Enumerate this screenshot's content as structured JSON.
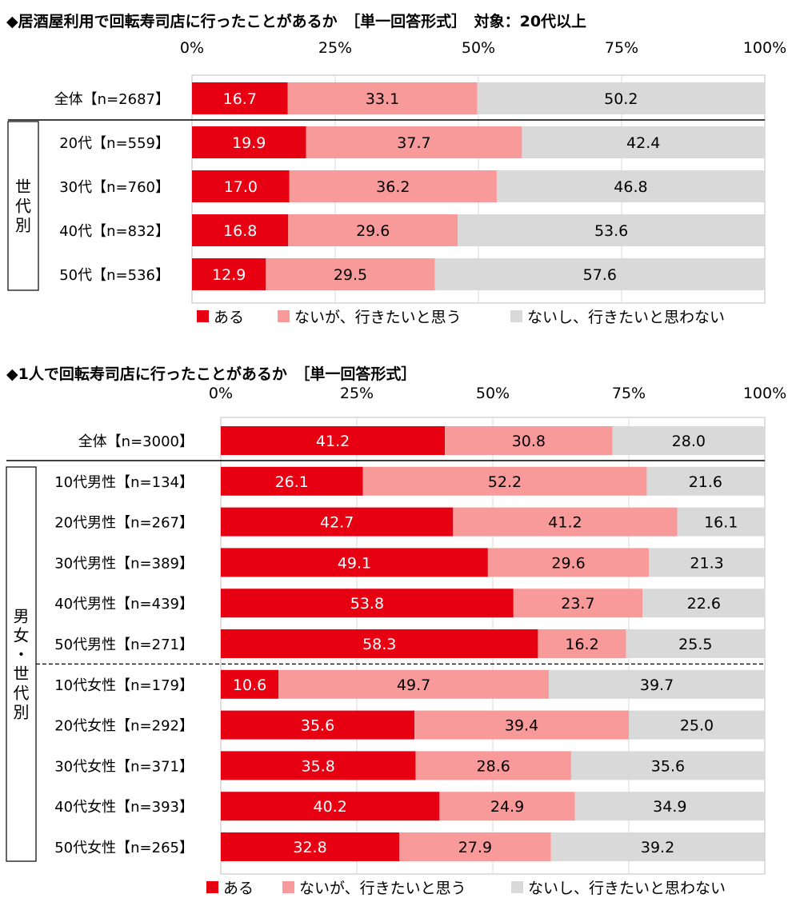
{
  "colors": {
    "aru": "#e60012",
    "nai_ikitai": "#f99a9a",
    "nai_omowanai": "#d9d9d9"
  },
  "legend": [
    "ある",
    "ないが、行きたいと思う",
    "ないし、行きたいと思わない"
  ],
  "chart_data": [
    {
      "type": "bar",
      "orientation": "horizontal-stacked",
      "title": "◆居酒屋利用で回転寿司店に行ったことがあるか　［単一回答形式］　対象：20代以上",
      "xlim": [
        0,
        100
      ],
      "ticks": [
        "0%",
        "25%",
        "50%",
        "75%",
        "100%"
      ],
      "group_label": "世代別",
      "categories": [
        "全体【n=2687】",
        "20代【n=559】",
        "30代【n=760】",
        "40代【n=832】",
        "50代【n=536】"
      ],
      "series": [
        {
          "name": "ある",
          "values": [
            16.7,
            19.9,
            17.0,
            16.8,
            12.9
          ]
        },
        {
          "name": "ないが、行きたいと思う",
          "values": [
            33.1,
            37.7,
            36.2,
            29.6,
            29.5
          ]
        },
        {
          "name": "ないし、行きたいと思わない",
          "values": [
            50.2,
            42.4,
            46.8,
            53.6,
            57.6
          ]
        }
      ]
    },
    {
      "type": "bar",
      "orientation": "horizontal-stacked",
      "title": "◆1人で回転寿司店に行ったことがあるか　［単一回答形式］",
      "xlim": [
        0,
        100
      ],
      "ticks": [
        "0%",
        "25%",
        "50%",
        "75%",
        "100%"
      ],
      "group_label": "男女・世代別",
      "categories": [
        "全体【n=3000】",
        "10代男性【n=134】",
        "20代男性【n=267】",
        "30代男性【n=389】",
        "40代男性【n=439】",
        "50代男性【n=271】",
        "10代女性【n=179】",
        "20代女性【n=292】",
        "30代女性【n=371】",
        "40代女性【n=393】",
        "50代女性【n=265】"
      ],
      "series": [
        {
          "name": "ある",
          "values": [
            41.2,
            26.1,
            42.7,
            49.1,
            53.8,
            58.3,
            10.6,
            35.6,
            35.8,
            40.2,
            32.8
          ]
        },
        {
          "name": "ないが、行きたいと思う",
          "values": [
            30.8,
            52.2,
            41.2,
            29.6,
            23.7,
            16.2,
            49.7,
            39.4,
            28.6,
            24.9,
            27.9
          ]
        },
        {
          "name": "ないし、行きたいと思わない",
          "values": [
            28.0,
            21.6,
            16.1,
            21.3,
            22.6,
            25.5,
            39.7,
            25.0,
            35.6,
            34.9,
            39.2
          ]
        }
      ]
    }
  ]
}
